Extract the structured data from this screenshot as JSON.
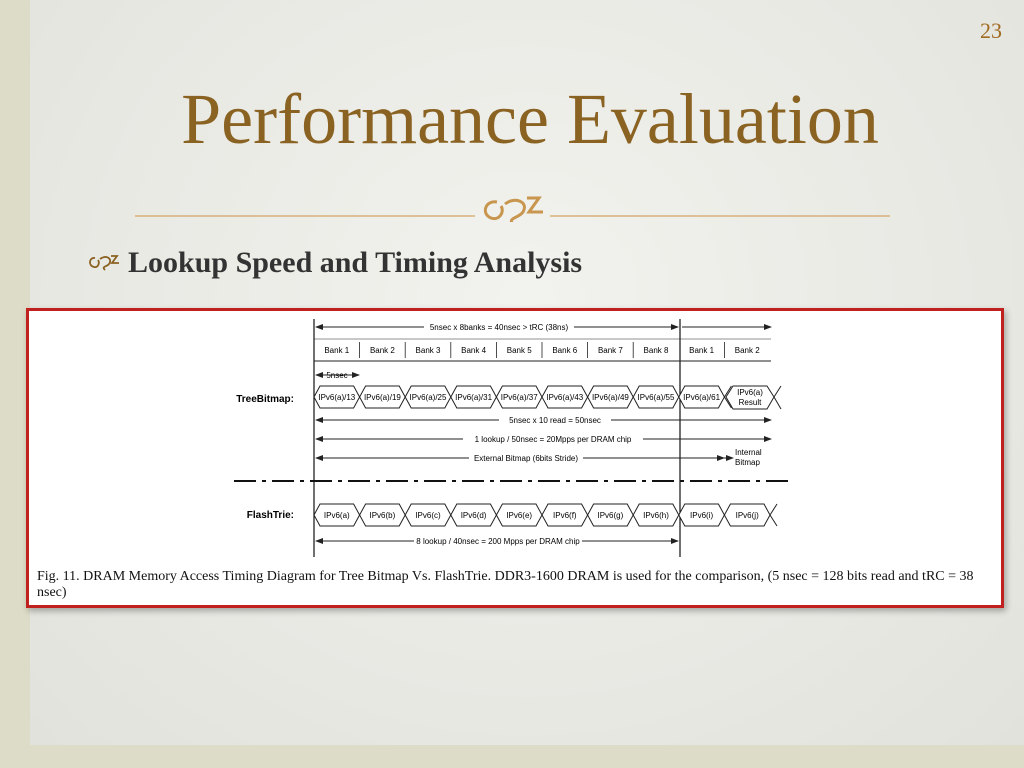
{
  "slide": {
    "page_number": "23",
    "title": "Performance Evaluation",
    "bullet": "Lookup Speed and Timing Analysis"
  },
  "figure": {
    "caption": "Fig. 11.   DRAM Memory Access Timing Diagram for Tree Bitmap Vs. FlashTrie. DDR3-1600 DRAM is used for the comparison, (5 nsec = 128 bits read and tRC = 38 nsec)",
    "top_span": "5nsec x  8banks  = 40nsec  > tRC (38ns)",
    "banks": [
      "Bank 1",
      "Bank 2",
      "Bank 3",
      "Bank 4",
      "Bank 5",
      "Bank 6",
      "Bank 7",
      "Bank 8",
      "Bank 1",
      "Bank 2"
    ],
    "step": "5nsec",
    "treebitmap": {
      "label": "TreeBitmap:",
      "cells": [
        "IPv6(a)/13",
        "IPv6(a)/19",
        "IPv6(a)/25",
        "IPv6(a)/31",
        "IPv6(a)/37",
        "IPv6(a)/43",
        "IPv6(a)/49",
        "IPv6(a)/55",
        "IPv6(a)/61"
      ],
      "result_line1": "IPv6(a)",
      "result_line2": "Result",
      "reads": "5nsec x  10 read  = 50nsec",
      "rate": "1 lookup / 50nsec   = 20Mpps per DRAM chip",
      "external": "External Bitmap  (6bits Stride)",
      "internal_line1": "Internal",
      "internal_line2": "Bitmap"
    },
    "flashtrie": {
      "label": "FlashTrie:",
      "cells": [
        "IPv6(a)",
        "IPv6(b)",
        "IPv6(c)",
        "IPv6(d)",
        "IPv6(e)",
        "IPv6(f)",
        "IPv6(g)",
        "IPv6(h)",
        "IPv6(i)",
        "IPv6(j)"
      ],
      "rate": "8 lookup  / 40nsec = 200 Mpps per DRAM chip"
    }
  }
}
